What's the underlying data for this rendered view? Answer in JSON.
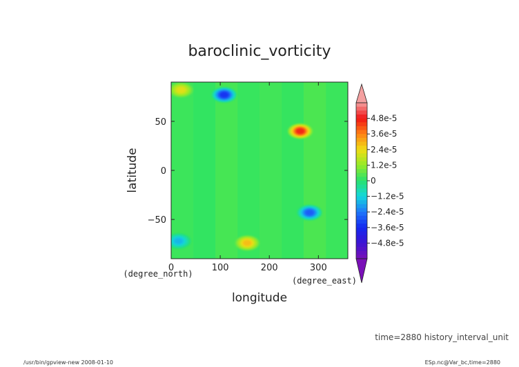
{
  "chart_data": {
    "type": "heatmap",
    "title": "baroclinic_vorticity",
    "xlabel": "longitude",
    "ylabel": "latitude",
    "x_unit": "(degree_east)",
    "y_unit": "(degree_north)",
    "xlim": [
      0,
      360
    ],
    "ylim": [
      -90,
      90
    ],
    "x_ticks": [
      "0",
      "100",
      "200",
      "300"
    ],
    "y_ticks": [
      "50",
      "0",
      "−50"
    ],
    "colorbar": {
      "range": [
        -6e-05,
        6e-05
      ],
      "labels": [
        "4.8e-5",
        "3.6e-5",
        "2.4e-5",
        "1.2e-5",
        "0",
        "−1.2e-5",
        "−2.4e-5",
        "−3.6e-5",
        "−4.8e-5"
      ]
    },
    "features": [
      {
        "lon": 263,
        "lat": 40,
        "value": 4.6e-05
      },
      {
        "lon": 155,
        "lat": -74,
        "value": 2.8e-05
      },
      {
        "lon": 20,
        "lat": 82,
        "value": 2.2e-05
      },
      {
        "lon": 108,
        "lat": 77,
        "value": -3.4e-05
      },
      {
        "lon": 282,
        "lat": -43,
        "value": -2.8e-05
      },
      {
        "lon": 15,
        "lat": -72,
        "value": -1.6e-05
      }
    ],
    "background_value": 2e-06
  },
  "info": {
    "time_label": "time=2880  history_interval_unit",
    "footer_left": "/usr/bin/gpview-new  2008-01-10",
    "footer_right": "ESp.nc@Var_bc,time=2880"
  }
}
